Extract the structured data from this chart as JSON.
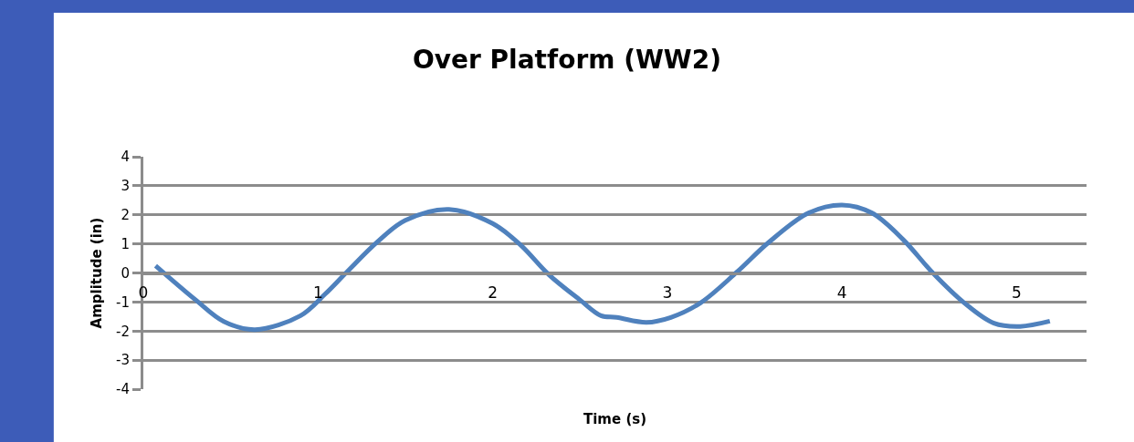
{
  "chart_data": {
    "type": "line",
    "title": "Over Platform (WW2)",
    "xlabel": "Time (s)",
    "ylabel": "Amplitude (in)",
    "x": [
      0.07,
      0.3,
      0.46,
      0.64,
      0.9,
      1.04,
      1.16,
      1.34,
      1.5,
      1.75,
      2.0,
      2.16,
      2.32,
      2.5,
      2.62,
      2.71,
      2.88,
      3.02,
      3.19,
      3.4,
      3.58,
      3.81,
      4.0,
      4.17,
      4.35,
      4.52,
      4.7,
      4.87,
      5.02,
      5.19
    ],
    "series": [
      {
        "color": "#4f81bd",
        "values": [
          0.25,
          -0.93,
          -1.67,
          -1.95,
          -1.47,
          -0.73,
          0.0,
          1.07,
          1.81,
          2.19,
          1.7,
          0.96,
          -0.05,
          -0.93,
          -1.47,
          -1.53,
          -1.7,
          -1.53,
          -1.03,
          0.04,
          1.05,
          2.07,
          2.34,
          2.07,
          1.15,
          0.0,
          -1.03,
          -1.73,
          -1.84,
          -1.66
        ]
      }
    ],
    "xlim": [
      0,
      5.4
    ],
    "xticks": [
      0,
      1,
      2,
      3,
      4,
      5
    ],
    "ylim": [
      -4,
      4
    ],
    "yticks": [
      -4,
      -3,
      -2,
      -1,
      0,
      1,
      2,
      3,
      4
    ],
    "grid": "y",
    "marker": "none",
    "line_style": "solid"
  }
}
